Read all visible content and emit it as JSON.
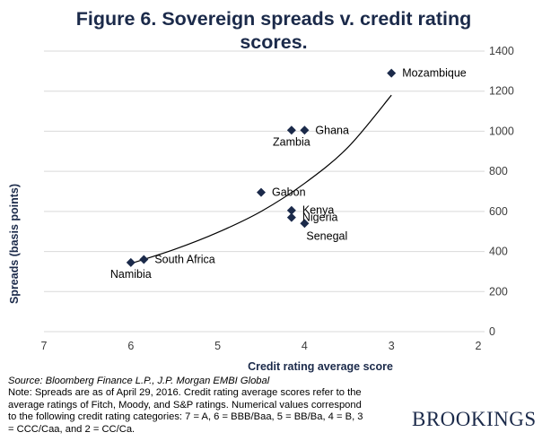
{
  "chart_data": {
    "type": "scatter",
    "title": "Figure 6. Sovereign spreads v. credit rating scores.",
    "xlabel": "Credit rating average score",
    "ylabel": "Spreads (basis points)",
    "x_axis": {
      "min": 2,
      "max": 7,
      "reversed": true,
      "ticks": [
        7,
        6,
        5,
        4,
        3,
        2
      ]
    },
    "y_axis": {
      "min": 0,
      "max": 1400,
      "position": "right",
      "ticks": [
        0,
        200,
        400,
        600,
        800,
        1000,
        1200,
        1400
      ]
    },
    "grid": "horizontal",
    "marker": "diamond",
    "colors": {
      "marker": "#1b2a4a",
      "trendline": "#000000",
      "grid": "#d9d9d9",
      "title": "#1b2a4a"
    },
    "points": [
      {
        "label": "Mozambique",
        "x": 3.0,
        "y": 1290,
        "label_pos": "right"
      },
      {
        "label": "Ghana",
        "x": 4.0,
        "y": 1005,
        "label_pos": "right"
      },
      {
        "label": "Zambia",
        "x": 4.15,
        "y": 1005,
        "label_pos": "below"
      },
      {
        "label": "Gabon",
        "x": 4.5,
        "y": 695,
        "label_pos": "right"
      },
      {
        "label": "Kenya",
        "x": 4.15,
        "y": 605,
        "label_pos": "right"
      },
      {
        "label": "Nigeria",
        "x": 4.15,
        "y": 570,
        "label_pos": "right"
      },
      {
        "label": "Senegal",
        "x": 4.0,
        "y": 540,
        "label_pos": "below-right"
      },
      {
        "label": "South Africa",
        "x": 5.85,
        "y": 360,
        "label_pos": "right"
      },
      {
        "label": "Namibia",
        "x": 6.0,
        "y": 345,
        "label_pos": "below"
      }
    ],
    "trendline": {
      "type": "exponential",
      "points": [
        [
          6.0,
          340
        ],
        [
          5.5,
          410
        ],
        [
          5.0,
          495
        ],
        [
          4.5,
          600
        ],
        [
          4.0,
          740
        ],
        [
          3.5,
          920
        ],
        [
          3.0,
          1180
        ]
      ]
    }
  },
  "notes": {
    "source": "Source: Bloomberg Finance L.P., J.P. Morgan EMBI Global",
    "note": "Note: Spreads are as of April 29, 2016. Credit rating average scores refer to the average ratings of Fitch, Moody, and S&P ratings. Numerical values correspond to the following credit rating categories: 7 = A, 6 = BBB/Baa, 5 = BB/Ba, 4 = B, 3 = CCC/Caa, and 2 = CC/Ca."
  },
  "brand": {
    "logo_text": "BROOKINGS"
  }
}
